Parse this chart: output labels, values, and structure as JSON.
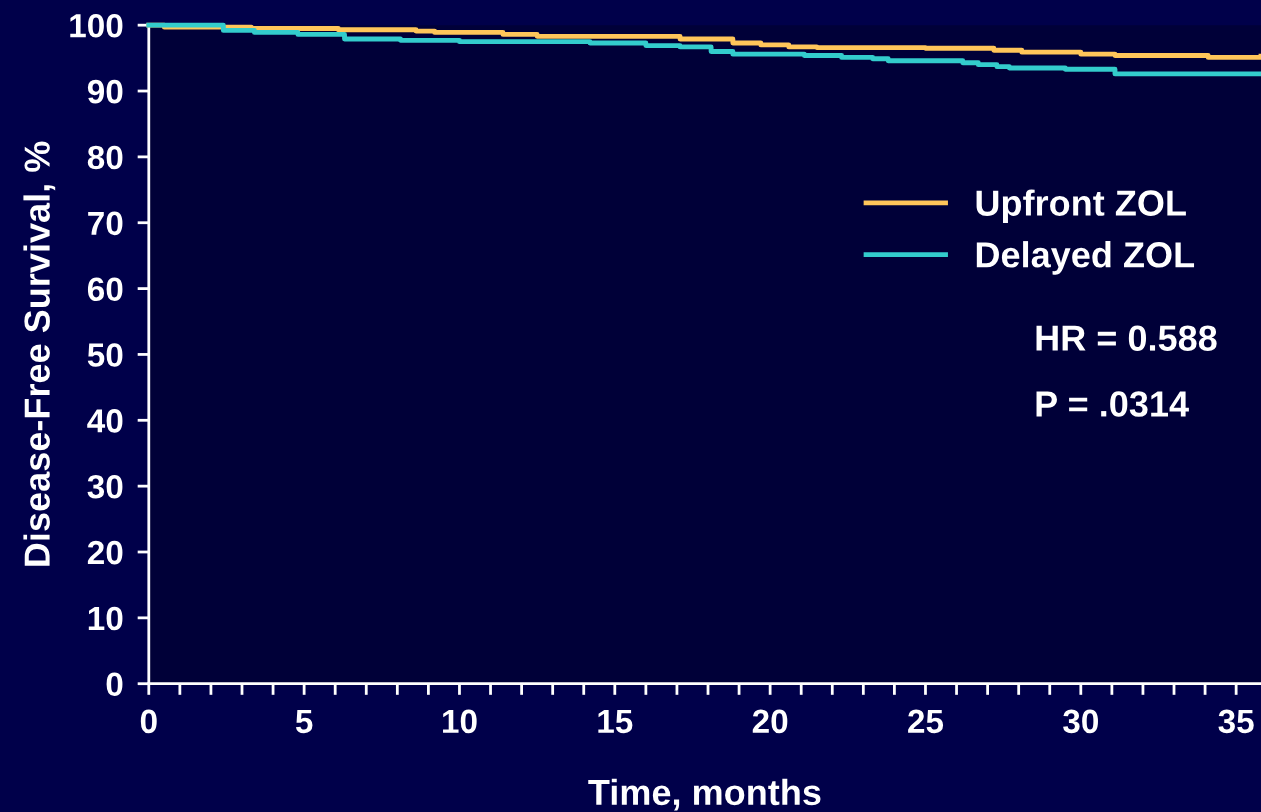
{
  "chart_data": {
    "type": "step",
    "xlabel": "Time, months",
    "ylabel": "Disease-Free Survival, %",
    "xlim": [
      0,
      35.8
    ],
    "ylim": [
      0,
      100
    ],
    "xticks": [
      0,
      {
        "value": 1,
        "label": null
      },
      {
        "value": 2,
        "label": null
      },
      {
        "value": 3,
        "label": null
      },
      {
        "value": 4,
        "label": null
      },
      5,
      {
        "value": 6,
        "label": null
      },
      {
        "value": 7,
        "label": null
      },
      {
        "value": 8,
        "label": null
      },
      {
        "value": 9,
        "label": null
      },
      10,
      {
        "value": 11,
        "label": null
      },
      {
        "value": 12,
        "label": null
      },
      {
        "value": 13,
        "label": null
      },
      {
        "value": 14,
        "label": null
      },
      15,
      {
        "value": 16,
        "label": null
      },
      {
        "value": 17,
        "label": null
      },
      {
        "value": 18,
        "label": null
      },
      {
        "value": 19,
        "label": null
      },
      20,
      {
        "value": 21,
        "label": null
      },
      {
        "value": 22,
        "label": null
      },
      {
        "value": 23,
        "label": null
      },
      {
        "value": 24,
        "label": null
      },
      25,
      {
        "value": 26,
        "label": null
      },
      {
        "value": 27,
        "label": null
      },
      {
        "value": 28,
        "label": null
      },
      {
        "value": 29,
        "label": null
      },
      30,
      {
        "value": 31,
        "label": null
      },
      {
        "value": 32,
        "label": null
      },
      {
        "value": 33,
        "label": null
      },
      {
        "value": 34,
        "label": null
      },
      35
    ],
    "yticks": [
      0,
      10,
      20,
      30,
      40,
      50,
      60,
      70,
      80,
      90,
      100
    ],
    "grid": false,
    "legend": "right",
    "marker": "none",
    "line_style": "solid",
    "series": [
      {
        "name": "Upfront ZOL",
        "color": "#ffc65a",
        "x": [
          0,
          0.5,
          3.3,
          6.1,
          8.6,
          9.2,
          11.4,
          12.5,
          17.1,
          18.8,
          19.7,
          20.6,
          21.5,
          25.0,
          27.2,
          28.1,
          30.0,
          31.1,
          34.1,
          35.8
        ],
        "values": [
          100,
          99.7,
          99.5,
          99.3,
          99.1,
          98.9,
          98.6,
          98.3,
          97.9,
          97.3,
          97.0,
          96.7,
          96.6,
          96.5,
          96.2,
          95.9,
          95.6,
          95.4,
          95.1,
          95.3
        ]
      },
      {
        "name": "Delayed ZOL",
        "color": "#33cccc",
        "x": [
          0,
          2.4,
          3.4,
          4.8,
          6.3,
          8.1,
          10.0,
          14.2,
          16.0,
          17.1,
          18.1,
          18.8,
          21.1,
          22.3,
          23.3,
          23.8,
          26.2,
          26.7,
          27.3,
          27.7,
          29.5,
          31.1,
          35.8
        ],
        "values": [
          100,
          99.2,
          98.9,
          98.6,
          97.9,
          97.7,
          97.5,
          97.3,
          96.9,
          96.7,
          96.0,
          95.6,
          95.4,
          95.1,
          94.9,
          94.6,
          94.3,
          94.0,
          93.7,
          93.5,
          93.3,
          92.6,
          92.6
        ]
      }
    ],
    "annotations": [
      "HR = 0.588",
      "P = .0314"
    ]
  }
}
